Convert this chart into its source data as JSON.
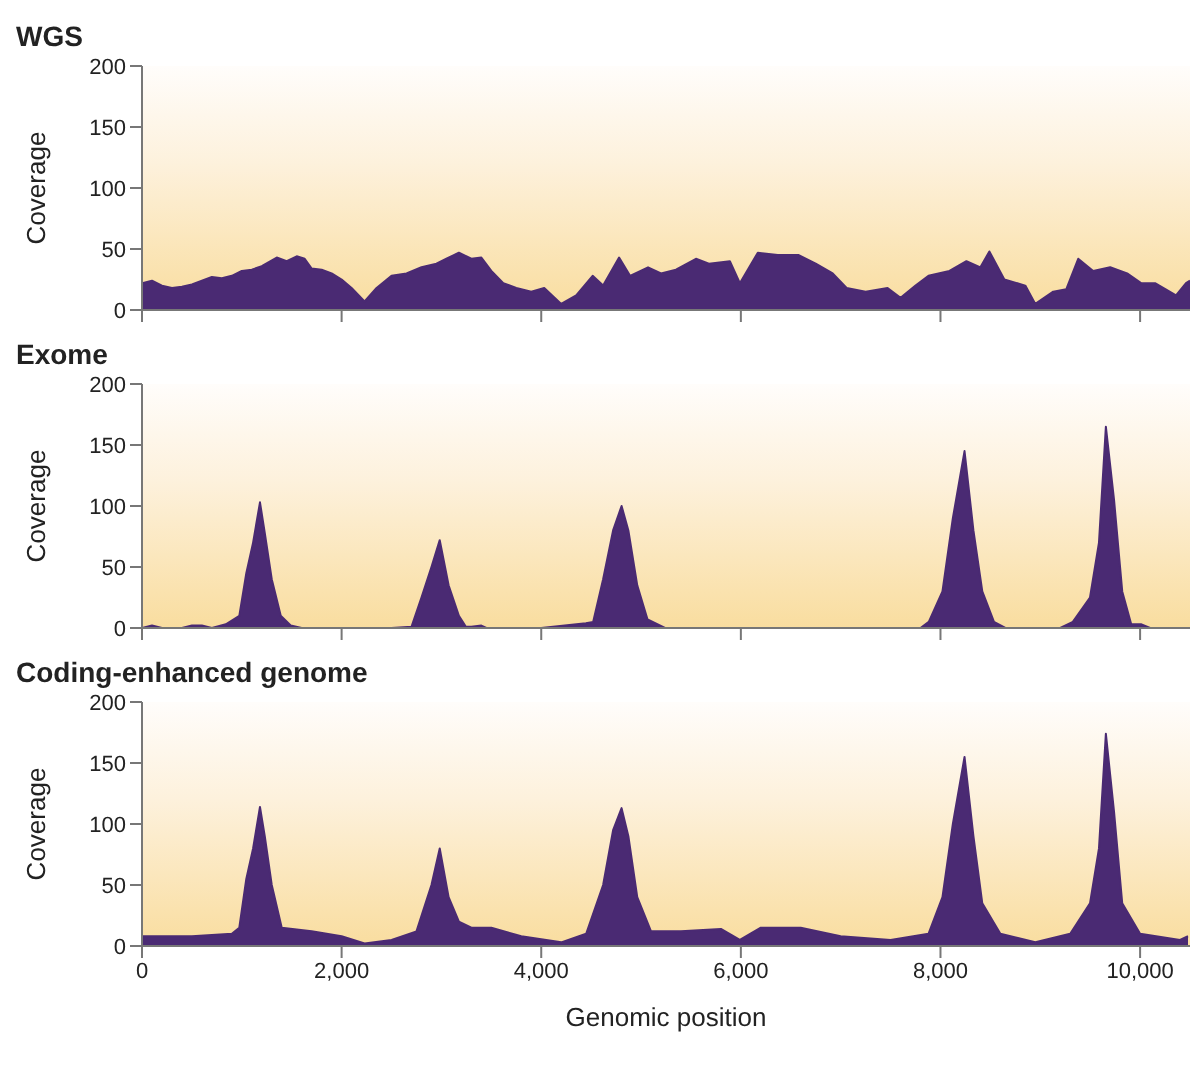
{
  "chart_data": [
    {
      "type": "area",
      "title": "WGS",
      "ylabel": "Coverage",
      "xlim": [
        0,
        10500
      ],
      "ylim": [
        0,
        200
      ],
      "yticks": [
        0,
        50,
        100,
        150,
        200
      ],
      "xticks": [
        {
          "value": 0,
          "label": null
        },
        {
          "value": 2000,
          "label": null
        },
        {
          "value": 4000,
          "label": null
        },
        {
          "value": 6000,
          "label": null
        },
        {
          "value": 8000,
          "label": null
        },
        {
          "value": 10000,
          "label": null
        }
      ],
      "tick_labels": "y",
      "series": [
        {
          "color": "#4a2a73",
          "x": [
            0,
            100,
            200,
            300,
            400,
            500,
            600,
            700,
            800,
            900,
            1000,
            1100,
            1200,
            1350,
            1450,
            1550,
            1630,
            1700,
            1800,
            1900,
            2000,
            2100,
            2230,
            2350,
            2500,
            2650,
            2800,
            2950,
            3050,
            3175,
            3300,
            3400,
            3500,
            3620,
            3750,
            3900,
            4030,
            4200,
            4350,
            4515,
            4620,
            4780,
            4890,
            5070,
            5200,
            5350,
            5550,
            5680,
            5890,
            5990,
            6170,
            6370,
            6580,
            6750,
            6920,
            7060,
            7250,
            7470,
            7600,
            7750,
            7880,
            8090,
            8260,
            8400,
            8490,
            8640,
            8850,
            8950,
            9130,
            9260,
            9380,
            9530,
            9700,
            9870,
            10010,
            10150,
            10360,
            10460,
            10500
          ],
          "values": [
            22,
            24,
            20,
            18,
            19,
            21,
            24,
            27,
            26,
            28,
            32,
            33,
            36,
            43,
            40,
            44,
            42,
            34,
            33,
            30,
            25,
            18,
            7,
            18,
            28,
            30,
            35,
            38,
            42,
            47,
            42,
            43,
            32,
            22,
            18,
            15,
            18,
            5,
            12,
            28,
            20,
            43,
            28,
            35,
            30,
            33,
            42,
            38,
            40,
            22,
            47,
            45,
            45,
            38,
            30,
            18,
            15,
            18,
            10,
            20,
            28,
            32,
            40,
            35,
            48,
            25,
            20,
            5,
            15,
            17,
            42,
            32,
            35,
            30,
            22,
            22,
            12,
            22,
            24
          ]
        }
      ]
    },
    {
      "type": "area",
      "title": "Exome",
      "ylabel": "Coverage",
      "xlim": [
        0,
        10500
      ],
      "ylim": [
        0,
        200
      ],
      "yticks": [
        0,
        50,
        100,
        150,
        200
      ],
      "xticks": [
        {
          "value": 0,
          "label": null
        },
        {
          "value": 2000,
          "label": null
        },
        {
          "value": 4000,
          "label": null
        },
        {
          "value": 6000,
          "label": null
        },
        {
          "value": 8000,
          "label": null
        },
        {
          "value": 10000,
          "label": null
        }
      ],
      "tick_labels": "y",
      "series": [
        {
          "color": "#4a2a73",
          "x": [
            0,
            100,
            200,
            400,
            500,
            600,
            700,
            840,
            975,
            1045,
            1113,
            1182,
            1230,
            1300,
            1390,
            1490,
            1600,
            2000,
            2500,
            2700,
            2800,
            2900,
            2983,
            3072,
            3175,
            3245,
            3300,
            3400,
            3450,
            4000,
            4447,
            4520,
            4620,
            4720,
            4805,
            4873,
            4962,
            5065,
            5240,
            6000,
            7000,
            7800,
            7883,
            8020,
            8124,
            8241,
            8330,
            8419,
            8536,
            8650,
            9200,
            9326,
            9498,
            9588,
            9657,
            9739,
            9821,
            9911,
            10014,
            10100,
            10500
          ],
          "values": [
            0,
            2,
            0,
            0,
            2,
            2,
            0,
            3,
            10,
            45,
            70,
            103,
            78,
            40,
            10,
            2,
            0,
            0,
            0,
            1,
            25,
            50,
            72,
            35,
            10,
            1,
            1,
            2,
            0,
            0,
            4,
            5,
            40,
            80,
            100,
            80,
            35,
            7,
            0,
            0,
            0,
            0,
            5,
            30,
            90,
            145,
            80,
            30,
            5,
            0,
            0,
            5,
            25,
            70,
            165,
            105,
            30,
            3,
            3,
            0,
            0
          ]
        }
      ]
    },
    {
      "type": "area",
      "title": "Coding-enhanced genome",
      "xlabel": "Genomic position",
      "ylabel": "Coverage",
      "xlim": [
        0,
        10500
      ],
      "ylim": [
        0,
        200
      ],
      "yticks": [
        0,
        50,
        100,
        150,
        200
      ],
      "xticks": [
        {
          "value": 0,
          "label": "0"
        },
        {
          "value": 2000,
          "label": "2,000"
        },
        {
          "value": 4000,
          "label": "4,000"
        },
        {
          "value": 6000,
          "label": "6,000"
        },
        {
          "value": 8000,
          "label": "8,000"
        },
        {
          "value": 10000,
          "label": "10,000"
        }
      ],
      "series": [
        {
          "color": "#4a2a73",
          "x": [
            0,
            500,
            900,
            975,
            1045,
            1113,
            1182,
            1230,
            1300,
            1400,
            1700,
            2000,
            2230,
            2500,
            2750,
            2900,
            2983,
            3072,
            3175,
            3300,
            3500,
            3800,
            4200,
            4450,
            4620,
            4720,
            4805,
            4873,
            4962,
            5100,
            5400,
            5800,
            5990,
            6200,
            6600,
            7000,
            7500,
            7880,
            8020,
            8124,
            8241,
            8330,
            8419,
            8600,
            8950,
            9300,
            9498,
            9588,
            9657,
            9739,
            9821,
            10000,
            10400,
            10480
          ],
          "values": [
            8,
            8,
            10,
            15,
            55,
            80,
            114,
            90,
            50,
            15,
            12,
            8,
            2,
            5,
            12,
            50,
            80,
            40,
            20,
            15,
            15,
            8,
            3,
            10,
            50,
            95,
            113,
            90,
            40,
            12,
            12,
            14,
            5,
            15,
            15,
            8,
            5,
            10,
            40,
            100,
            155,
            90,
            35,
            10,
            3,
            10,
            35,
            80,
            174,
            110,
            35,
            10,
            5,
            8
          ]
        }
      ]
    }
  ]
}
